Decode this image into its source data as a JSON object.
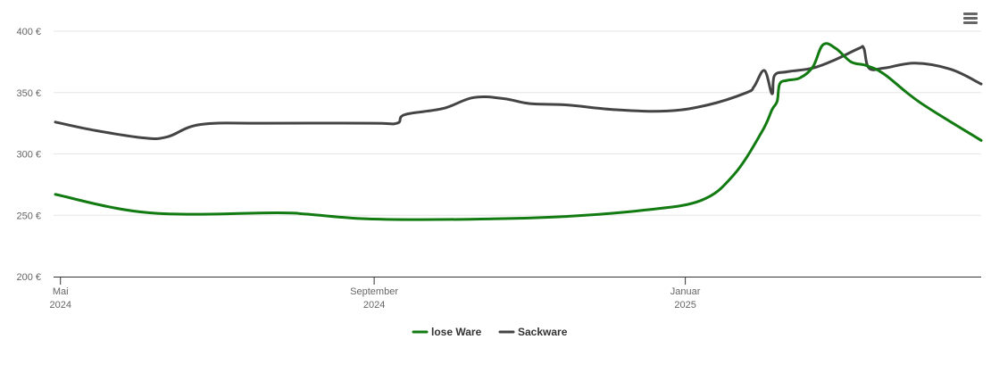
{
  "chart_data": {
    "type": "line",
    "title": "",
    "xlabel": "",
    "ylabel": "",
    "ylim": [
      200,
      400
    ],
    "y_ticks": [
      {
        "value": 200,
        "label": "200 €"
      },
      {
        "value": 250,
        "label": "250 €"
      },
      {
        "value": 300,
        "label": "300 €"
      },
      {
        "value": 350,
        "label": "350 €"
      },
      {
        "value": 400,
        "label": "400 €"
      }
    ],
    "x_ticks": [
      {
        "date": "2024-05-01",
        "line1": "Mai",
        "line2": "2024"
      },
      {
        "date": "2024-09-01",
        "line1": "September",
        "line2": "2024"
      },
      {
        "date": "2025-01-01",
        "line1": "Januar",
        "line2": "2025"
      }
    ],
    "xlim": [
      "2024-04-29",
      "2025-04-27"
    ],
    "grid": true,
    "legend_position": "bottom-center",
    "series": [
      {
        "name": "lose Ware",
        "color": "#117a11",
        "points": [
          [
            "2024-04-29",
            267
          ],
          [
            "2024-06-05",
            252
          ],
          [
            "2024-07-25",
            252
          ],
          [
            "2024-08-05",
            251
          ],
          [
            "2024-08-25",
            247.5
          ],
          [
            "2024-09-15",
            246.5
          ],
          [
            "2024-10-15",
            247
          ],
          [
            "2024-11-15",
            249
          ],
          [
            "2024-12-15",
            254
          ],
          [
            "2025-01-07",
            262
          ],
          [
            "2025-01-20",
            283
          ],
          [
            "2025-01-31",
            318
          ],
          [
            "2025-02-04",
            336
          ],
          [
            "2025-02-06",
            343
          ],
          [
            "2025-02-07",
            357
          ],
          [
            "2025-02-10",
            360
          ],
          [
            "2025-02-15",
            362
          ],
          [
            "2025-02-20",
            371
          ],
          [
            "2025-02-24",
            389
          ],
          [
            "2025-03-01",
            386
          ],
          [
            "2025-03-07",
            375
          ],
          [
            "2025-03-13",
            372
          ],
          [
            "2025-03-20",
            365
          ],
          [
            "2025-04-03",
            342
          ],
          [
            "2025-04-27",
            311
          ]
        ]
      },
      {
        "name": "Sackware",
        "color": "#444444",
        "points": [
          [
            "2024-04-29",
            326
          ],
          [
            "2024-05-15",
            319
          ],
          [
            "2024-06-03",
            313
          ],
          [
            "2024-06-12",
            314
          ],
          [
            "2024-06-25",
            324
          ],
          [
            "2024-07-20",
            325
          ],
          [
            "2024-08-31",
            325
          ],
          [
            "2024-09-10",
            325
          ],
          [
            "2024-09-13",
            332
          ],
          [
            "2024-09-28",
            337
          ],
          [
            "2024-10-10",
            346
          ],
          [
            "2024-10-22",
            345
          ],
          [
            "2024-11-01",
            341
          ],
          [
            "2024-11-15",
            340
          ],
          [
            "2024-12-05",
            336
          ],
          [
            "2024-12-25",
            335
          ],
          [
            "2025-01-10",
            340
          ],
          [
            "2025-01-25",
            350
          ],
          [
            "2025-01-28",
            355
          ],
          [
            "2025-02-01",
            368
          ],
          [
            "2025-02-04",
            349
          ],
          [
            "2025-02-05",
            364
          ],
          [
            "2025-02-10",
            367
          ],
          [
            "2025-02-20",
            370
          ],
          [
            "2025-03-01",
            377
          ],
          [
            "2025-03-10",
            386
          ],
          [
            "2025-03-12",
            386
          ],
          [
            "2025-03-14",
            370
          ],
          [
            "2025-03-20",
            370
          ],
          [
            "2025-04-01",
            374
          ],
          [
            "2025-04-15",
            369
          ],
          [
            "2025-04-27",
            357
          ]
        ]
      }
    ]
  },
  "menu": {
    "icon": "hamburger-icon"
  }
}
